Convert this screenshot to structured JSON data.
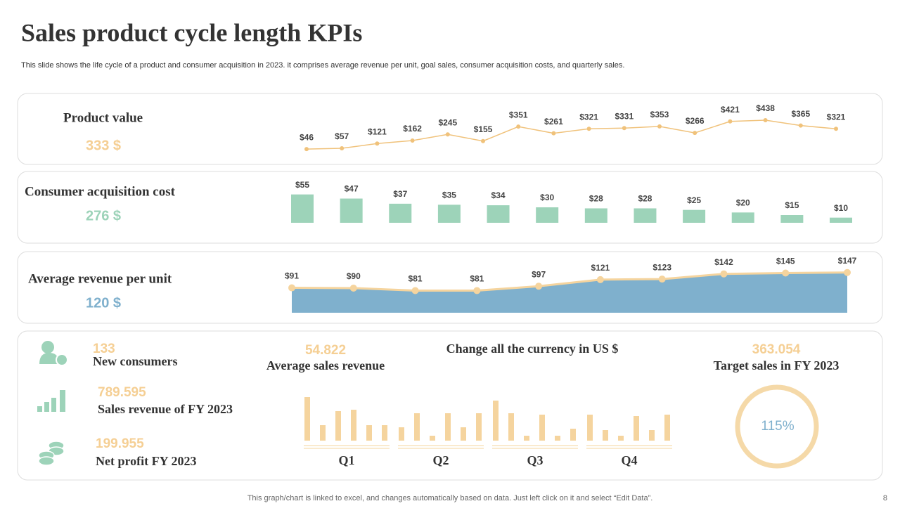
{
  "title": "Sales product cycle length KPIs",
  "subtitle": "This slide shows the life cycle of a product and consumer acquisition in 2023. it comprises average revenue per unit, goal sales, consumer acquisition costs, and quarterly sales.",
  "panels": [
    {
      "label": "Product value",
      "value": "333 $"
    },
    {
      "label": "Consumer acquisition cost",
      "value": "276 $"
    },
    {
      "label": "Average revenue per unit",
      "value": "120 $"
    }
  ],
  "kpis": [
    {
      "value": "133",
      "label": "New consumers"
    },
    {
      "value": "789.595",
      "label": "Sales revenue of FY 2023"
    },
    {
      "value": "199.955",
      "label": "Net profit FY 2023"
    },
    {
      "value": "54.822",
      "label": "Average sales revenue"
    },
    {
      "value": "363.054",
      "label": "Target sales in FY 2023"
    }
  ],
  "note": "Change all the currency in US $",
  "footer": "This graph/chart is linked to excel,  and changes automatically based on data. Just left click on it and select “Edit Data”.",
  "page_number": "8",
  "chart_data": [
    {
      "type": "line",
      "color": "#f0c27b",
      "ylim": [
        0,
        500
      ],
      "values": [
        46,
        57,
        121,
        162,
        245,
        155,
        351,
        261,
        321,
        331,
        353,
        266,
        421,
        438,
        365,
        321
      ],
      "value_labels": [
        "$46",
        "$57",
        "$121",
        "$162",
        "$245",
        "$155",
        "$351",
        "$261",
        "$321",
        "$331",
        "$353",
        "$266",
        "$421",
        "$438",
        "$365",
        "$321"
      ]
    },
    {
      "type": "bar",
      "color": "#9dd3b9",
      "ylim": [
        0,
        60
      ],
      "values": [
        55,
        47,
        37,
        35,
        34,
        30,
        28,
        28,
        25,
        20,
        15,
        10
      ],
      "value_labels": [
        "$55",
        "$47",
        "$37",
        "$35",
        "$34",
        "$30",
        "$28",
        "$28",
        "$25",
        "$20",
        "$15",
        "$10"
      ]
    },
    {
      "type": "area",
      "color": "#7fb0cd",
      "line_color": "#f5d49e",
      "ylim": [
        0,
        190
      ],
      "values": [
        91,
        90,
        81,
        81,
        97,
        121,
        123,
        142,
        145,
        147
      ],
      "value_labels": [
        "$91",
        "$90",
        "$81",
        "$81",
        "$97",
        "$121",
        "$123",
        "$142",
        "$145",
        "$147"
      ]
    },
    {
      "type": "grouped_bar",
      "color": "#f5d49e",
      "ylim": [
        0,
        70
      ],
      "categories": [
        "Q1",
        "Q2",
        "Q3",
        "Q4"
      ],
      "groups": [
        [
          62,
          22,
          42,
          44,
          22,
          22
        ],
        [
          19,
          39,
          7,
          39,
          19,
          39
        ],
        [
          57,
          39,
          7,
          37,
          7,
          17
        ],
        [
          37,
          15,
          7,
          35,
          15,
          37
        ]
      ]
    },
    {
      "type": "ring",
      "color": "#f5d9a8",
      "text_color": "#7fb0cd",
      "value": 115,
      "value_label": "115%"
    }
  ]
}
